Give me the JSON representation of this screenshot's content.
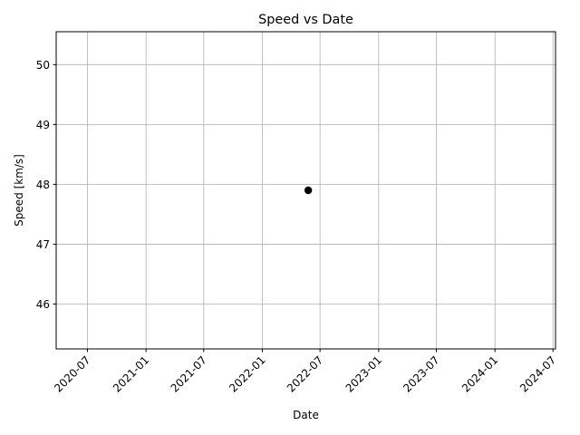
{
  "chart_data": {
    "type": "scatter",
    "title": "Speed vs Date",
    "xlabel": "Date",
    "ylabel": "Speed [km/s]",
    "x_tick_labels": [
      "2020-07",
      "2021-01",
      "2021-07",
      "2022-01",
      "2022-07",
      "2023-01",
      "2023-07",
      "2024-01",
      "2024-07"
    ],
    "y_tick_labels": [
      "46",
      "47",
      "48",
      "49",
      "50"
    ],
    "x_ticks": [
      "2020-07-01",
      "2021-01-01",
      "2021-07-01",
      "2022-01-01",
      "2022-07-01",
      "2023-01-01",
      "2023-07-01",
      "2024-01-01",
      "2024-07-01"
    ],
    "y_ticks": [
      46,
      47,
      48,
      49,
      50
    ],
    "xlim": [
      "2020-03-25",
      "2024-07-09"
    ],
    "ylim": [
      45.25,
      50.55
    ],
    "points": [
      {
        "x": "2022-05-25",
        "y": 47.9
      }
    ],
    "grid": true,
    "marker_color": "#000000",
    "grid_color": "#b0b0b0"
  }
}
